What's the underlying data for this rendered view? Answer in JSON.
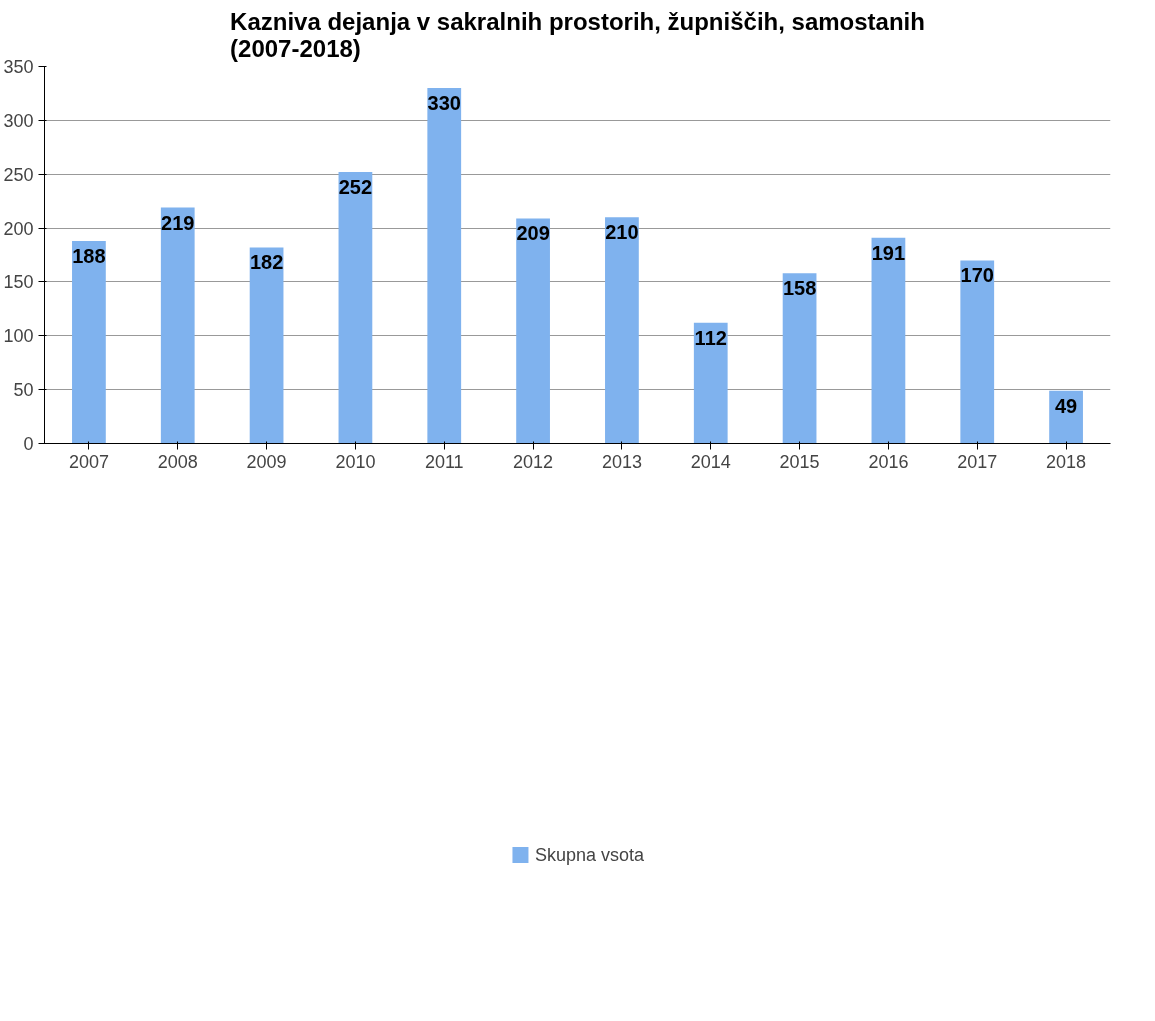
{
  "chart_data": {
    "type": "bar",
    "title": "Kazniva dejanja v sakralnih prostorih, župniščih, samostanih\n(2007-2018)",
    "categories": [
      "2007",
      "2008",
      "2009",
      "2010",
      "2011",
      "2012",
      "2013",
      "2014",
      "2015",
      "2016",
      "2017",
      "2018"
    ],
    "series": [
      {
        "name": "Skupna vsota",
        "color": "#7fb2ee",
        "values": [
          188,
          219,
          182,
          252,
          330,
          209,
          210,
          112,
          158,
          191,
          170,
          49
        ]
      }
    ],
    "ylim": [
      0,
      350
    ],
    "yticks": [
      0,
      50,
      100,
      150,
      200,
      250,
      300,
      350
    ],
    "grid": "y",
    "legend": "bottom",
    "data_labels": true
  }
}
